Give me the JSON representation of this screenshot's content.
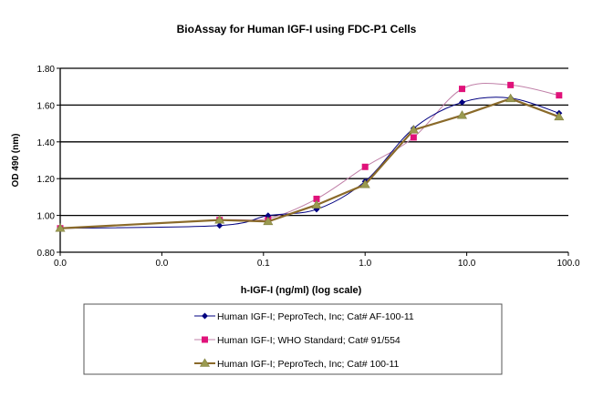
{
  "chart_data": {
    "type": "line",
    "title": "BioAssay  for Human IGF-I using FDC-P1 Cells",
    "xlabel": "h-IGF-I (ng/ml) (log scale)",
    "ylabel": "OD 490 (nm)",
    "x_scale": "log",
    "xlim": [
      0.001,
      100
    ],
    "ylim": [
      0.8,
      1.8
    ],
    "x_tick_values": [
      0.001,
      0.01,
      0.1,
      1,
      10,
      100
    ],
    "x_tick_labels": [
      "0.0",
      "0.0",
      "0.1",
      "1.0",
      "10.0",
      "100.0"
    ],
    "y_ticks": [
      0.8,
      1.0,
      1.2,
      1.4,
      1.6,
      1.8
    ],
    "y_tick_labels": [
      "0.80",
      "1.00",
      "1.20",
      "1.40",
      "1.60",
      "1.80"
    ],
    "grid": "horizontal",
    "legend_placement": "bottom",
    "x": [
      0.001,
      0.037,
      0.111,
      0.333,
      1,
      3,
      9,
      27,
      81
    ],
    "series": [
      {
        "name": "Human IGF-I; PeproTech, Inc; Cat# AF-100-11",
        "color": "#000080",
        "marker": "diamond",
        "smooth": true,
        "values": [
          0.93,
          0.945,
          0.999,
          1.033,
          1.185,
          1.473,
          1.615,
          1.638,
          1.556
        ]
      },
      {
        "name": "Human IGF-I; WHO Standard; Cat# 91/554",
        "color": "#e0127a",
        "line_color": "#c080a8",
        "marker": "square",
        "smooth": true,
        "values": [
          0.93,
          0.975,
          0.983,
          1.09,
          1.264,
          1.424,
          1.688,
          1.709,
          1.653
        ]
      },
      {
        "name": "Human IGF-I; PeproTech, Inc; Cat# 100-11",
        "color": "#9a9a50",
        "line_color": "#8a6a2a",
        "marker": "triangle",
        "smooth": false,
        "values": [
          0.93,
          0.975,
          0.967,
          1.057,
          1.168,
          1.465,
          1.544,
          1.635,
          1.536
        ]
      }
    ]
  }
}
